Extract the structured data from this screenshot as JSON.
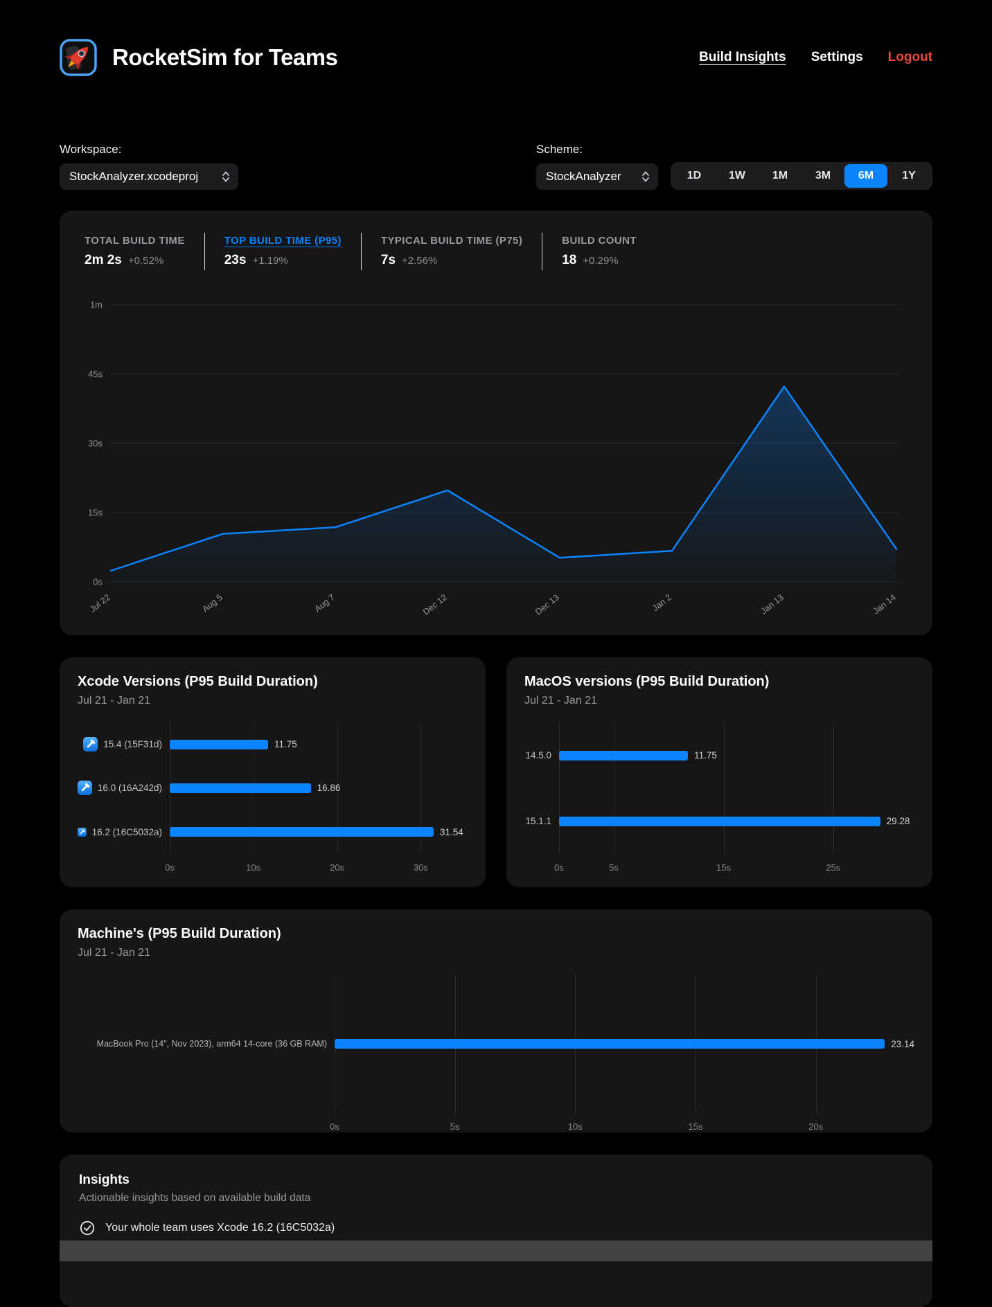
{
  "colors": {
    "accent": "#0a84ff",
    "logout_red": "#e8453c",
    "card_bg": "#161617",
    "control_bg": "#1d1d1f",
    "page_bg": "#000000"
  },
  "header": {
    "title": "RocketSim for Teams",
    "logo_icon": "rocketsim-app-icon",
    "nav": [
      {
        "label": "Build Insights",
        "active": true
      },
      {
        "label": "Settings"
      },
      {
        "label": "Logout",
        "danger": true
      }
    ]
  },
  "controls": {
    "workspace_label": "Workspace:",
    "workspace_value": "StockAnalyzer.xcodeproj",
    "scheme_label": "Scheme:",
    "scheme_value": "StockAnalyzer",
    "time_ranges": [
      "1D",
      "1W",
      "1M",
      "3M",
      "6M",
      "1Y"
    ],
    "active_range": "6M"
  },
  "stats": [
    {
      "label": "TOTAL BUILD TIME",
      "value": "2m 2s",
      "delta": "+0.52%",
      "highlight": false
    },
    {
      "label": "TOP BUILD TIME (P95)",
      "value": "23s",
      "delta": "+1.19%",
      "highlight": true
    },
    {
      "label": "TYPICAL BUILD TIME (P75)",
      "value": "7s",
      "delta": "+2.56%",
      "highlight": false
    },
    {
      "label": "BUILD COUNT",
      "value": "18",
      "delta": "+0.29%",
      "highlight": false
    }
  ],
  "chart_data": [
    {
      "id": "build-time-trend",
      "type": "area",
      "title": "Top Build Time (P95) trend",
      "x": [
        "Jul 22",
        "Aug 5",
        "Aug 7",
        "Dec 12",
        "Dec 13",
        "Jan 2",
        "Jan 13",
        "Jan 14"
      ],
      "values_seconds": [
        2.4,
        10.4,
        11.8,
        19.8,
        5.2,
        6.7,
        42.3,
        7.1
      ],
      "y_ticks": [
        {
          "label": "0s",
          "v": 0
        },
        {
          "label": "15s",
          "v": 15
        },
        {
          "label": "30s",
          "v": 30
        },
        {
          "label": "45s",
          "v": 45
        },
        {
          "label": "1m",
          "v": 60
        }
      ],
      "ylim": [
        0,
        60
      ],
      "grid": true,
      "legend": "none",
      "line_color": "#0a84ff"
    },
    {
      "id": "xcode-versions",
      "type": "bar",
      "orientation": "horizontal",
      "title": "Xcode Versions (P95 Build Duration)",
      "subtitle": "Jul 21 - Jan 21",
      "categories": [
        "15.4 (15F31d)",
        "16.0 (16A242d)",
        "16.2 (16C5032a)"
      ],
      "values": [
        11.75,
        16.86,
        31.54
      ],
      "row_icon": "xcode-icon",
      "ticks": [
        {
          "label": "0s",
          "v": 0
        },
        {
          "label": "10s",
          "v": 10
        },
        {
          "label": "20s",
          "v": 20
        },
        {
          "label": "30s",
          "v": 30
        }
      ],
      "xmax": 35.6,
      "bar_color": "#0a84ff"
    },
    {
      "id": "macos-versions",
      "type": "bar",
      "orientation": "horizontal",
      "title": "MacOS versions (P95 Build Duration)",
      "subtitle": "Jul 21 - Jan 21",
      "categories": [
        "14.5.0",
        "15.1.1"
      ],
      "values": [
        11.75,
        29.28
      ],
      "ticks": [
        {
          "label": "0s",
          "v": 0
        },
        {
          "label": "5s",
          "v": 5
        },
        {
          "label": "15s",
          "v": 15
        },
        {
          "label": "25s",
          "v": 25
        }
      ],
      "xmax": 32.4,
      "bar_color": "#0a84ff"
    },
    {
      "id": "machines",
      "type": "bar",
      "orientation": "horizontal",
      "title": "Machine's (P95 Build Duration)",
      "subtitle": "Jul 21 - Jan 21",
      "categories": [
        "MacBook Pro (14\", Nov 2023), arm64 14-core (36 GB RAM)"
      ],
      "values": [
        23.14
      ],
      "ticks": [
        {
          "label": "0s",
          "v": 0
        },
        {
          "label": "5s",
          "v": 5
        },
        {
          "label": "10s",
          "v": 10
        },
        {
          "label": "15s",
          "v": 15
        },
        {
          "label": "20s",
          "v": 20
        }
      ],
      "xmax": 24.1,
      "bar_color": "#0a84ff"
    }
  ],
  "insights": {
    "title": "Insights",
    "subtitle": "Actionable insights based on available build data",
    "items": [
      {
        "icon": "checkmark-seal-icon",
        "text": "Your whole team uses Xcode 16.2 (16C5032a)"
      }
    ]
  }
}
